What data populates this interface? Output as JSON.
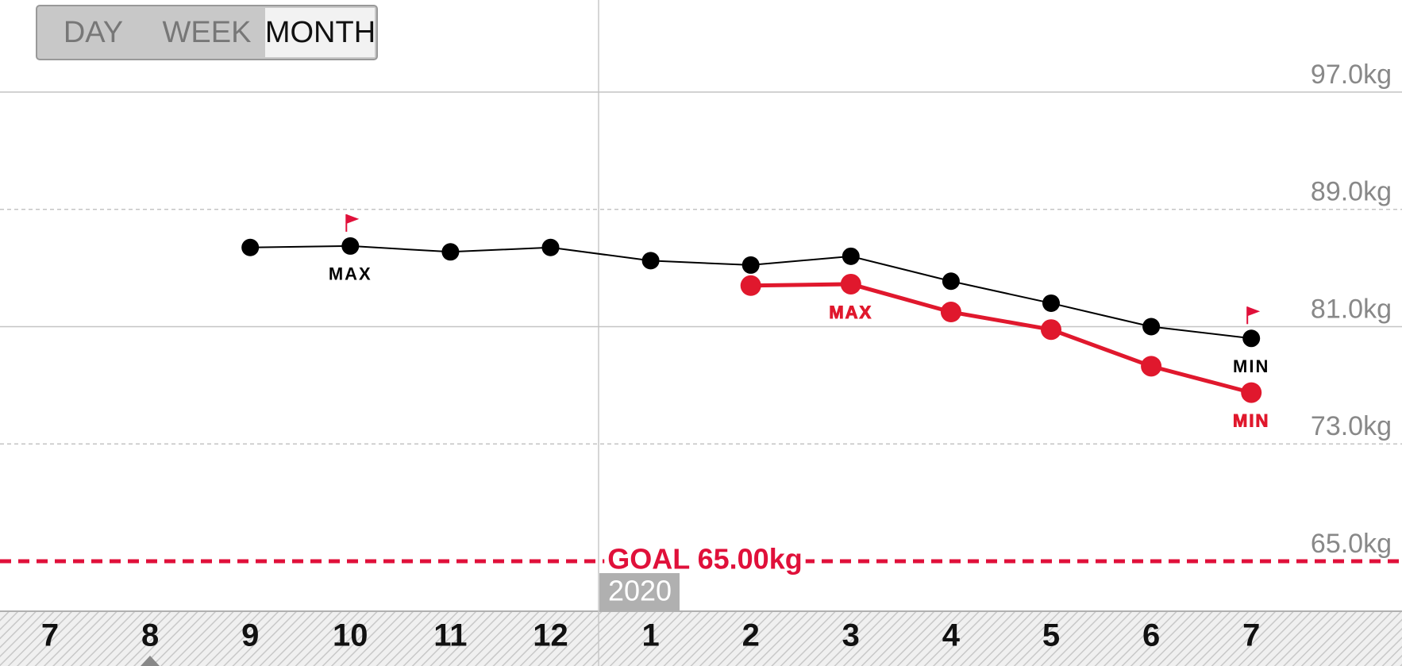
{
  "tabs": [
    "DAY",
    "WEEK",
    "MONTH"
  ],
  "selected_tab": 2,
  "chart_data": {
    "type": "line",
    "categories": [
      "7",
      "8",
      "9",
      "10",
      "11",
      "12",
      "1",
      "2",
      "3",
      "4",
      "5",
      "6",
      "7"
    ],
    "year_label": "2020",
    "series": [
      {
        "color": "#000000",
        "values": [
          null,
          null,
          86.4,
          86.5,
          86.1,
          86.4,
          85.5,
          85.2,
          85.8,
          84.1,
          82.6,
          81.0,
          80.2
        ],
        "max_label": "MAX",
        "min_label": "MIN",
        "flags": true
      },
      {
        "color": "#e0182d",
        "values": [
          null,
          null,
          null,
          null,
          null,
          null,
          null,
          83.8,
          83.9,
          82.0,
          80.8,
          78.3,
          76.5
        ],
        "max_label": "MAX",
        "min_label": "MIN",
        "flags": false
      }
    ],
    "ylim": [
      65,
      97
    ],
    "yticks": [
      {
        "value": 97,
        "label": "97.0kg"
      },
      {
        "value": 89,
        "label": "89.0kg"
      },
      {
        "value": 81,
        "label": "81.0kg"
      },
      {
        "value": 73,
        "label": "73.0kg"
      },
      {
        "value": 65,
        "label": "65.0kg"
      }
    ],
    "goal": {
      "value": 65,
      "label": "GOAL 65.00kg",
      "color": "#e0103a"
    },
    "grid": true
  }
}
